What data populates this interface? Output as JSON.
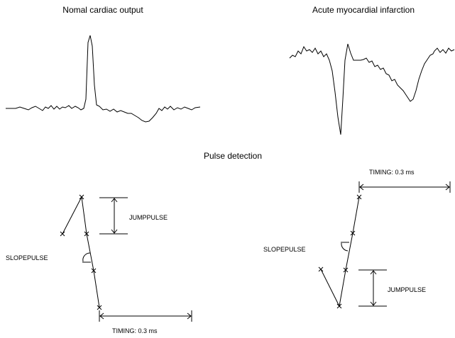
{
  "panels": [
    {
      "title": "Nomal cardiac output"
    },
    {
      "title": "Acute myocardial infarction"
    }
  ],
  "section": {
    "title": "Pulse detection"
  },
  "diagrams": [
    {
      "jump": "JUMPPULSE",
      "slope": "SLOPEPULSE",
      "timing": "TIMING: 0.3 ms"
    },
    {
      "jump": "JUMPPULSE",
      "slope": "SLOPEPULSE",
      "timing": "TIMING: 0.3 ms"
    }
  ]
}
